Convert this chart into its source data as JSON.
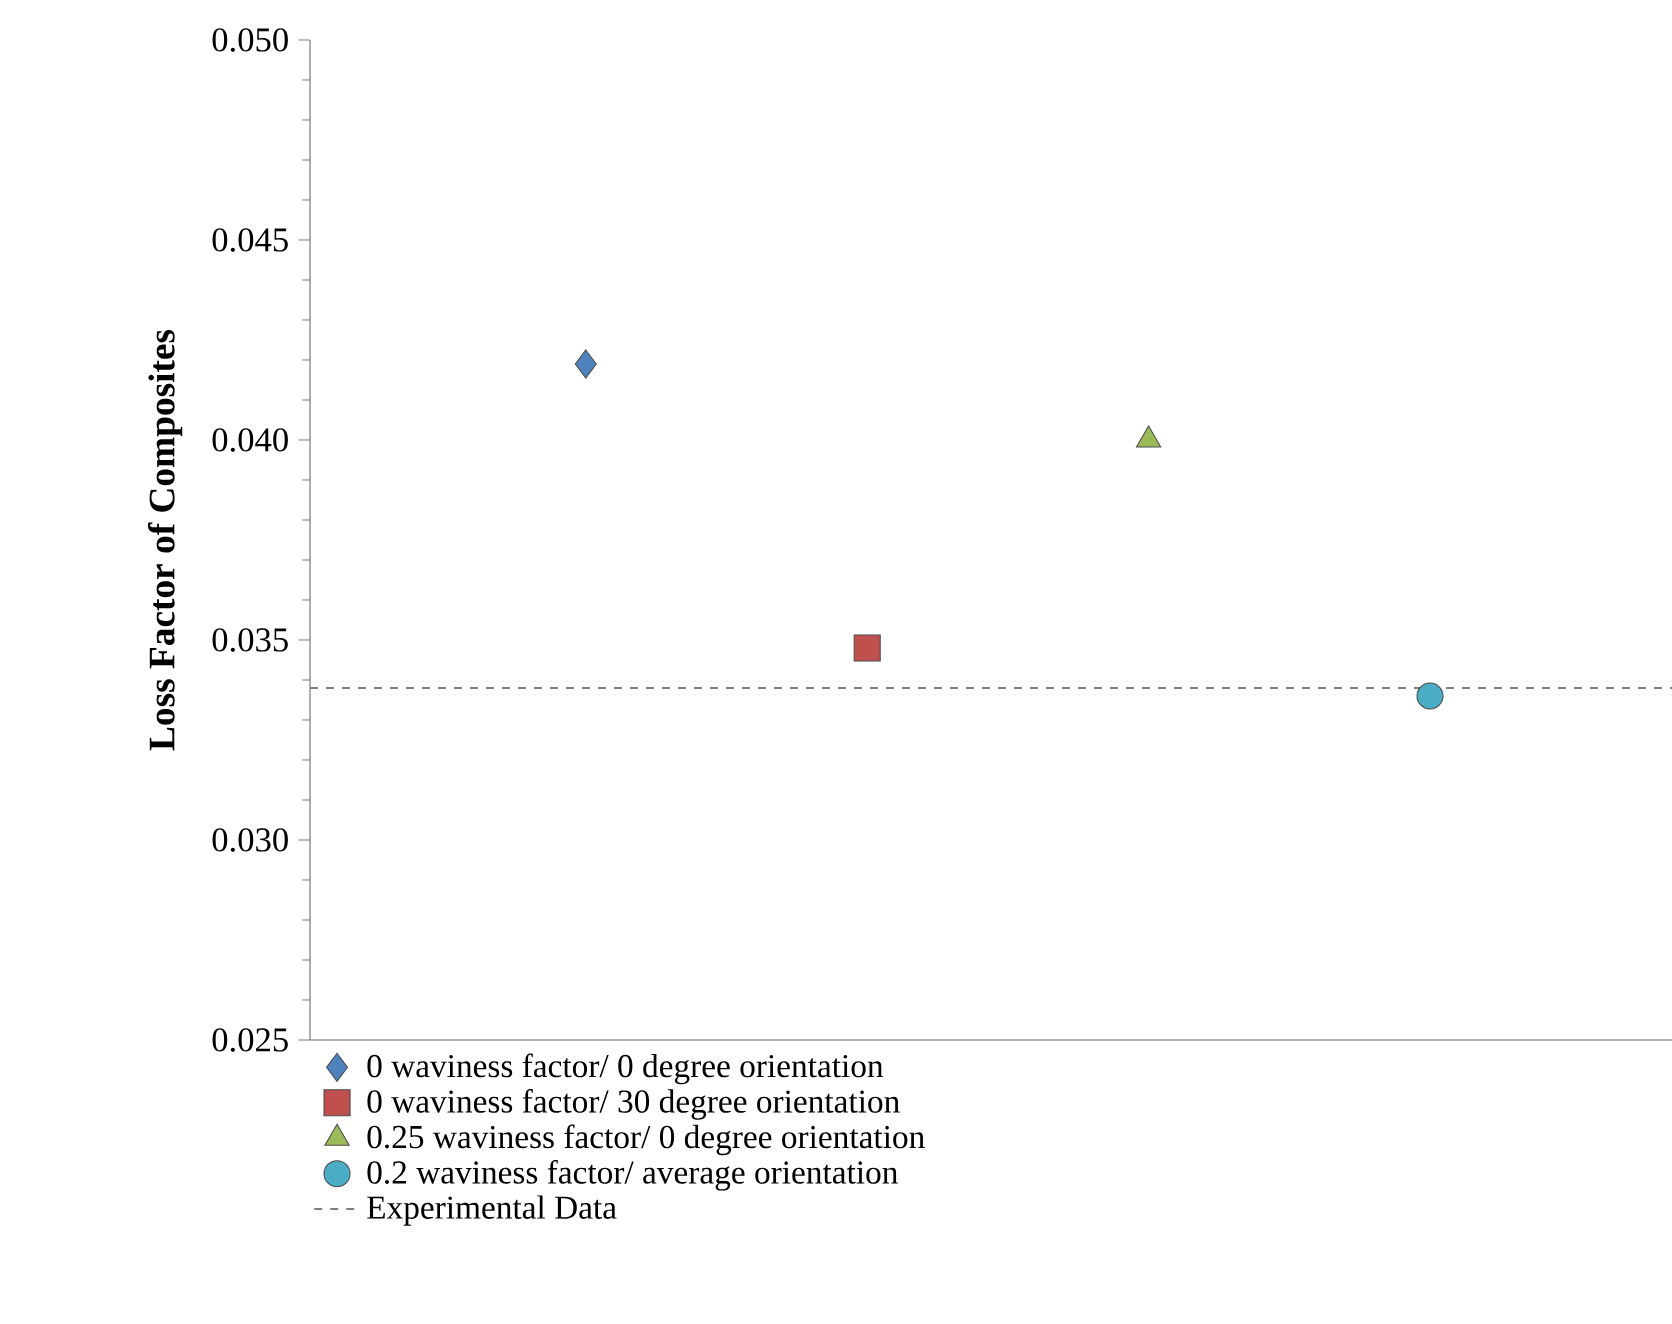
{
  "chart_data": {
    "type": "scatter",
    "ylabel": "Loss Factor of Composites",
    "categories": [
      null,
      null,
      null,
      null
    ],
    "ylim": [
      0.025,
      0.05
    ],
    "yticks": [
      {
        "value": 0.025,
        "label": "0.025"
      },
      {
        "value": 0.03,
        "label": "0.030"
      },
      {
        "value": 0.035,
        "label": "0.035"
      },
      {
        "value": 0.04,
        "label": "0.040"
      },
      {
        "value": 0.045,
        "label": "0.045"
      },
      {
        "value": 0.05,
        "label": "0.050"
      }
    ],
    "tick_labels": "y",
    "grid": false,
    "legend": "bottom left",
    "series": [
      {
        "name": "0 waviness factor/ 0 degree orientation",
        "color": "#4f81bd",
        "marker": "diamond",
        "values": [
          0.0419,
          null,
          null,
          null
        ]
      },
      {
        "name": "0 waviness factor/ 30 degree orientation",
        "color": "#c0504d",
        "marker": "square",
        "values": [
          null,
          0.0348,
          null,
          null
        ]
      },
      {
        "name": "0.25 waviness factor/ 0 degree orientation",
        "color": "#9bbb59",
        "marker": "triangle",
        "values": [
          null,
          null,
          0.04,
          null
        ]
      },
      {
        "name": "0.2 waviness factor/ average orientation",
        "color": "#4bacc6",
        "marker": "circle",
        "values": [
          null,
          null,
          null,
          0.0336
        ]
      }
    ],
    "ref_lines": [
      {
        "axis": "y",
        "value": 0.0338,
        "label": "Experimental  Data",
        "color": "#808080",
        "line_style": "dashed"
      }
    ]
  }
}
